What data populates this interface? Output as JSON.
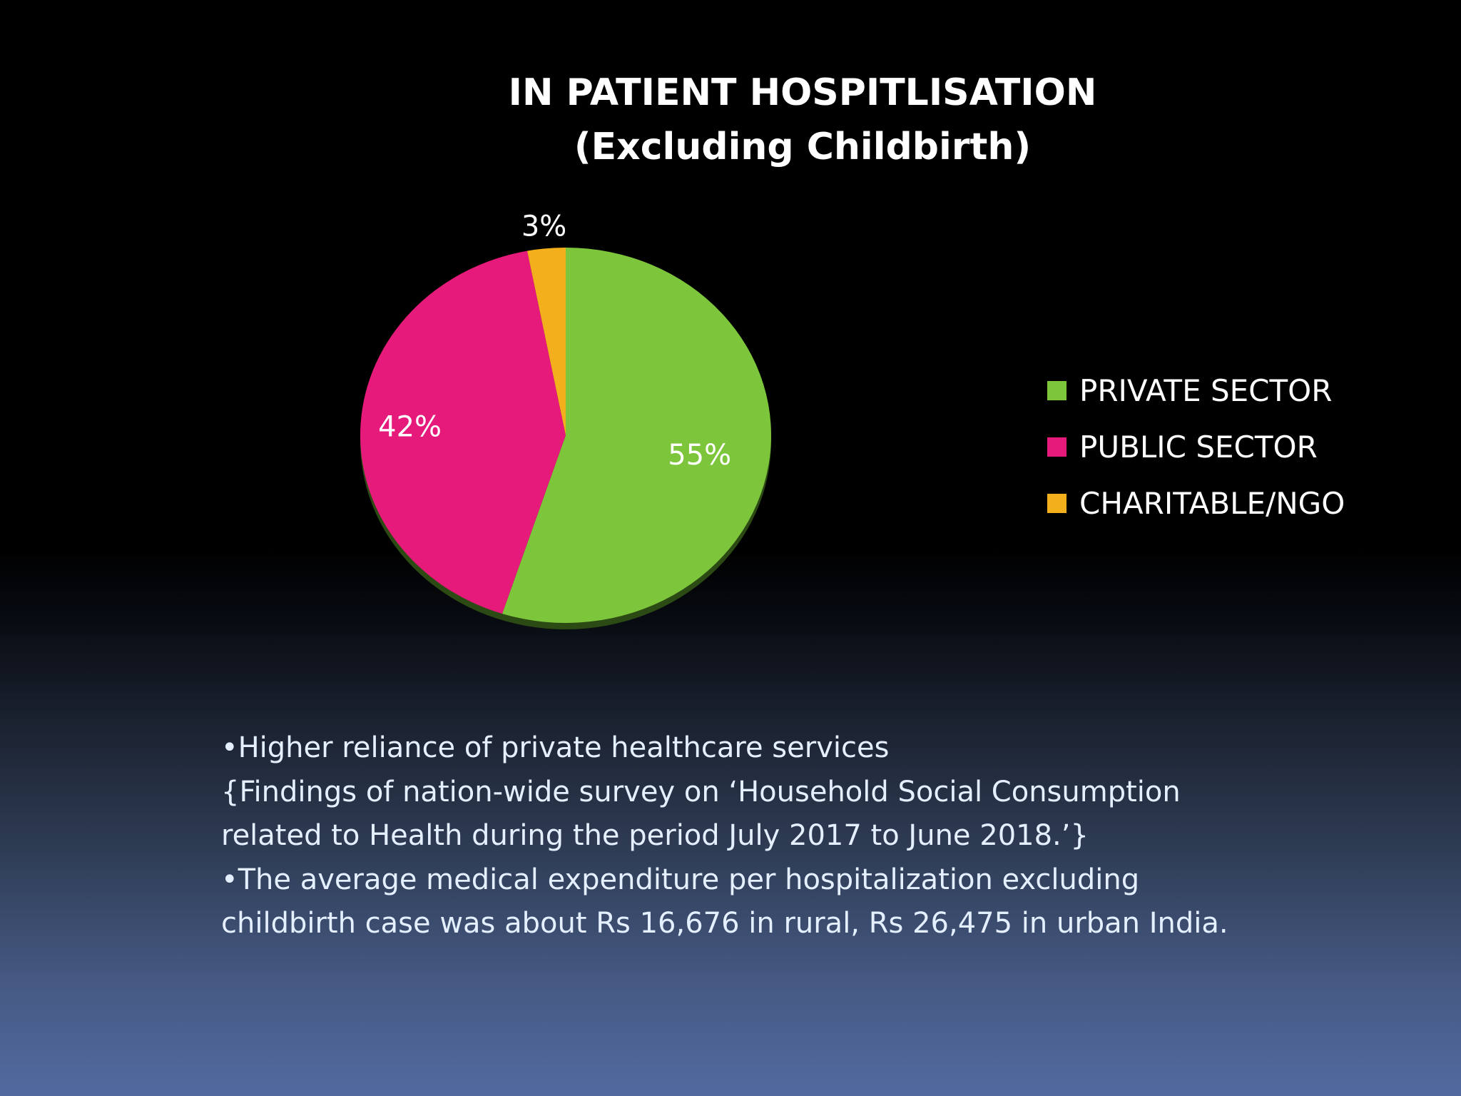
{
  "chart_data": {
    "type": "pie",
    "title": "IN PATIENT HOSPITLISATION",
    "subtitle": "(Excluding Childbirth)",
    "categories": [
      "PRIVATE SECTOR",
      "PUBLIC SECTOR",
      "CHARITABLE/NGO"
    ],
    "values": [
      55,
      42,
      3
    ],
    "data_labels": [
      "55%",
      "42%",
      "3%"
    ],
    "colors": [
      "#7dc63c",
      "#e51a7a",
      "#f4b01c"
    ],
    "legend_position": "right"
  },
  "text": {
    "lines": [
      "•Higher reliance of private healthcare services",
      "{Findings of nation-wide survey on ‘Household Social Consumption",
      "related to Health during the period July 2017 to June 2018.’}",
      "•The average medical expenditure per hospitalization  excluding",
      "childbirth case was about Rs 16,676 in rural, Rs 26,475 in urban India."
    ]
  }
}
